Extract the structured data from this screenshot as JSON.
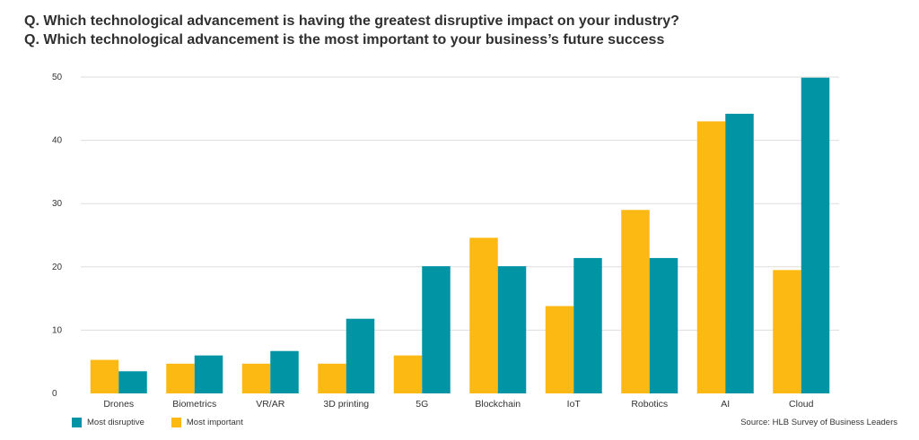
{
  "titles": {
    "line1": "Q. Which technological advancement is having the greatest disruptive impact on your industry?",
    "line2": "Q. Which technological advancement is the most important to your business’s future success"
  },
  "source": "Source: HLB Survey of Business Leaders",
  "colors": {
    "most_important": "#FDB913",
    "most_disruptive": "#0094A5",
    "grid": "#dddddd"
  },
  "chart_data": {
    "type": "bar",
    "categories": [
      "Drones",
      "Biometrics",
      "VR/AR",
      "3D printing",
      "5G",
      "Blockchain",
      "IoT",
      "Robotics",
      "AI",
      "Cloud"
    ],
    "series": [
      {
        "name": "Most important",
        "values": [
          5.3,
          4.7,
          4.7,
          4.7,
          6.0,
          24.6,
          13.8,
          29.0,
          43.0,
          19.5
        ]
      },
      {
        "name": "Most disruptive",
        "values": [
          3.5,
          6.0,
          6.7,
          11.8,
          20.1,
          20.1,
          21.4,
          21.4,
          44.2,
          49.9
        ]
      }
    ],
    "yticks": [
      0,
      10,
      20,
      30,
      40,
      50
    ],
    "ylim": [
      0,
      50
    ],
    "legend": [
      {
        "name": "Most disruptive",
        "color": "#0094A5"
      },
      {
        "name": "Most important",
        "color": "#FDB913"
      }
    ],
    "legend_position": "bottom-left",
    "grid": true
  }
}
